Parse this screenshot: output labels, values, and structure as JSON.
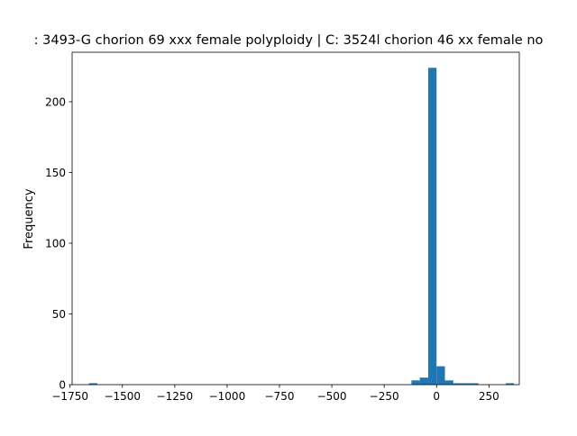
{
  "chart_data": {
    "type": "bar",
    "title": ": 3493-G chorion 69 xxx female polyploidy | C: 3524l chorion 46 xx female no",
    "xlabel": "",
    "ylabel": "Frequency",
    "xlim": [
      -1740,
      395
    ],
    "ylim": [
      0,
      235
    ],
    "bar_color": "#1f77b4",
    "x_ticks": [
      -1750,
      -1500,
      -1250,
      -1000,
      -750,
      -500,
      -250,
      0,
      250
    ],
    "x_tick_labels": [
      "−1750",
      "−1500",
      "−1250",
      "−1000",
      "−750",
      "−500",
      "−250",
      "0",
      "250"
    ],
    "y_ticks": [
      0,
      50,
      100,
      150,
      200
    ],
    "y_tick_labels": [
      "0",
      "50",
      "100",
      "150",
      "200"
    ],
    "bin_width": 40,
    "bins": [
      {
        "x0": -1660,
        "x1": -1620,
        "count": 1
      },
      {
        "x0": -120,
        "x1": -80,
        "count": 3
      },
      {
        "x0": -80,
        "x1": -40,
        "count": 5
      },
      {
        "x0": -40,
        "x1": 0,
        "count": 224
      },
      {
        "x0": 0,
        "x1": 40,
        "count": 13
      },
      {
        "x0": 40,
        "x1": 80,
        "count": 3
      },
      {
        "x0": 80,
        "x1": 120,
        "count": 1
      },
      {
        "x0": 120,
        "x1": 160,
        "count": 1
      },
      {
        "x0": 160,
        "x1": 200,
        "count": 1
      },
      {
        "x0": 330,
        "x1": 370,
        "count": 1
      }
    ]
  }
}
